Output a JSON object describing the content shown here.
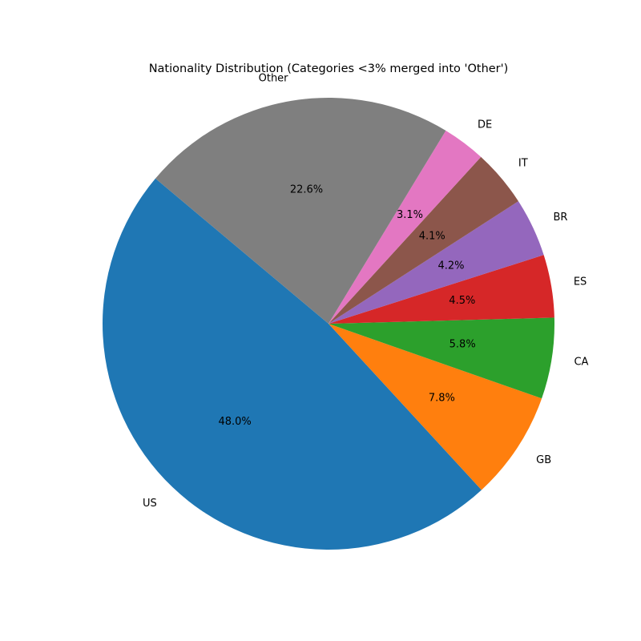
{
  "chart_data": {
    "type": "pie",
    "title": "Nationality Distribution (Categories <3% merged into 'Other')",
    "slices": [
      {
        "label": "US",
        "value": 48.0,
        "pct_label": "48.0%",
        "color": "#1f77b4"
      },
      {
        "label": "GB",
        "value": 7.8,
        "pct_label": "7.8%",
        "color": "#ff7f0e"
      },
      {
        "label": "CA",
        "value": 5.8,
        "pct_label": "5.8%",
        "color": "#2ca02c"
      },
      {
        "label": "ES",
        "value": 4.5,
        "pct_label": "4.5%",
        "color": "#d62728"
      },
      {
        "label": "BR",
        "value": 4.2,
        "pct_label": "4.2%",
        "color": "#9467bd"
      },
      {
        "label": "IT",
        "value": 4.1,
        "pct_label": "4.1%",
        "color": "#8c564b"
      },
      {
        "label": "DE",
        "value": 3.1,
        "pct_label": "3.1%",
        "color": "#e377c2"
      },
      {
        "label": "Other",
        "value": 22.6,
        "pct_label": "22.6%",
        "color": "#7f7f7f"
      }
    ],
    "start_angle_deg": 140,
    "direction": "counterclockwise",
    "legend": "none"
  }
}
